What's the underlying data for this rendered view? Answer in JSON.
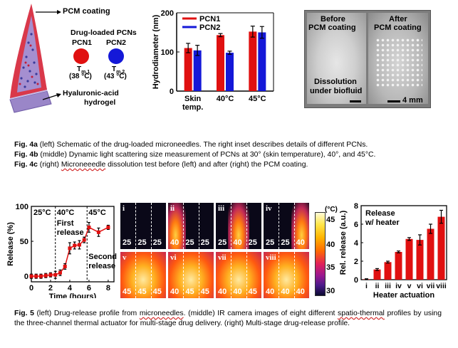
{
  "fig4a": {
    "pcm_label": "PCM coating",
    "drug_label": "Drug-loaded PCNs",
    "pcn1": "PCN1",
    "pcn2": "PCN2",
    "tm1_sym": "T",
    "tm1_sub": "m,1",
    "tm1_val": "(38 °C)",
    "tm2_sym": "T",
    "tm2_sub": "m,2",
    "tm2_val": "(43 °C)",
    "hydrogel1": "Hyaluronic-acid",
    "hydrogel2": "hydrogel",
    "colors": {
      "pcm": "#d9384a",
      "pcn1": "#e01010",
      "pcn2": "#1418d8"
    }
  },
  "fig4c": {
    "before1": "Before",
    "before2": "PCM coating",
    "after1": "After",
    "after2": "PCM coating",
    "dissolution1": "Dissolution",
    "dissolution2": "under biofluid",
    "scale": "4 mm"
  },
  "captions4": {
    "a_tag": "Fig. 4a",
    "a_text": " (left) Schematic of the drug-loaded microneedles. The right inset describes details of different PCNs.",
    "b_tag": "Fig. 4b",
    "b_text": " (middle) Dynamic light scattering size measurement of PCNs at 30° (skin temperature), 40°, and 45°C.",
    "c_tag": "Fig. 4c",
    "c_text_pre": " (right) ",
    "c_text_sq": "Microneeedle",
    "c_text_post": " dissolution test before (left) and after (right) the PCM coating."
  },
  "ir": {
    "unit": "(°C)",
    "scale_top": "45",
    "scale_mid": "40",
    "scale_low": "35",
    "scale_bot": "30",
    "panels": [
      {
        "id": "i",
        "label": "i",
        "nums": [
          "25",
          "25",
          "25"
        ]
      },
      {
        "id": "ii",
        "label": "ii",
        "nums": [
          "40",
          "25",
          "25"
        ]
      },
      {
        "id": "iii",
        "label": "iii",
        "nums": [
          "25",
          "40",
          "25"
        ]
      },
      {
        "id": "iv",
        "label": "iv",
        "nums": [
          "25",
          "25",
          "40"
        ]
      },
      {
        "id": "v",
        "label": "v",
        "nums": [
          "45",
          "45",
          "45"
        ]
      },
      {
        "id": "vi",
        "label": "vi",
        "nums": [
          "40",
          "45",
          "45"
        ]
      },
      {
        "id": "vii",
        "label": "vii",
        "nums": [
          "40",
          "40",
          "45"
        ]
      },
      {
        "id": "viii",
        "label": "viii",
        "nums": [
          "40",
          "40",
          "40"
        ]
      }
    ]
  },
  "caption5": {
    "tag": "Fig. 5",
    "t1": " (left) Drug-release profile from ",
    "sq1": "microneedles",
    "t2": ". (middle) IR camera images of eight different ",
    "sq2": "spatio-thermal",
    "t3": " profiles by using the three-channel thermal actuator for multi-stage drug delivery. (right) Multi-stage drug-release profile."
  },
  "chart_data": [
    {
      "id": "fig4b",
      "type": "bar",
      "categories": [
        "Skin temp.",
        "40°C",
        "45°C"
      ],
      "category_lines": [
        [
          "Skin",
          "temp."
        ],
        [
          "40°C"
        ],
        [
          "45°C"
        ]
      ],
      "series": [
        {
          "name": "PCN1",
          "color": "#e01010",
          "values": [
            110,
            143,
            152
          ],
          "err": [
            12,
            4,
            14
          ]
        },
        {
          "name": "PCN2",
          "color": "#1418d8",
          "values": [
            104,
            98,
            150
          ],
          "err": [
            13,
            4,
            15
          ]
        }
      ],
      "ylabel": "Hydrodiameter (nm)",
      "ylim": [
        0,
        200
      ],
      "yticks": [
        0,
        100,
        200
      ],
      "legend": "top-left"
    },
    {
      "id": "fig5left",
      "type": "line",
      "x": [
        0,
        0.5,
        1.0,
        1.5,
        2.0,
        2.5,
        3.0,
        3.5,
        4.0,
        4.5,
        5.0,
        5.5,
        6.0,
        7.0,
        8.0
      ],
      "y": [
        0,
        0,
        0,
        1,
        2,
        2,
        5,
        14,
        40,
        44,
        45,
        52,
        70,
        63,
        70
      ],
      "err": [
        3,
        3,
        3,
        3,
        3,
        5,
        4,
        4,
        8,
        5,
        6,
        4,
        7,
        6,
        3
      ],
      "color": "#e01010",
      "xlabel": "Time (hours)",
      "ylabel": "Release (%)",
      "xlim": [
        0,
        8.6
      ],
      "ylim": [
        -8,
        100
      ],
      "xticks": [
        0,
        2,
        4,
        6,
        8
      ],
      "yticks": [
        0,
        50,
        100
      ],
      "stages": [
        "25°C",
        "40°C",
        "45°C"
      ],
      "annotations": [
        "First",
        "release",
        "Second",
        "release"
      ]
    },
    {
      "id": "fig5right",
      "type": "bar",
      "categories": [
        "i",
        "ii",
        "iii",
        "iv",
        "v",
        "vi",
        "vii",
        "viii"
      ],
      "values": [
        0.05,
        1.1,
        1.9,
        3.0,
        4.4,
        4.3,
        5.5,
        6.8
      ],
      "err": [
        0.05,
        0.1,
        0.1,
        0.1,
        0.15,
        0.55,
        0.5,
        0.7
      ],
      "color": "#e01010",
      "xlabel": "Heater actuation",
      "ylabel": "Rel. release (a.u.)",
      "ylim": [
        0,
        8
      ],
      "yticks": [
        0,
        2,
        4,
        6,
        8
      ],
      "legend_lines": [
        "Release",
        "w/ heater"
      ]
    }
  ]
}
